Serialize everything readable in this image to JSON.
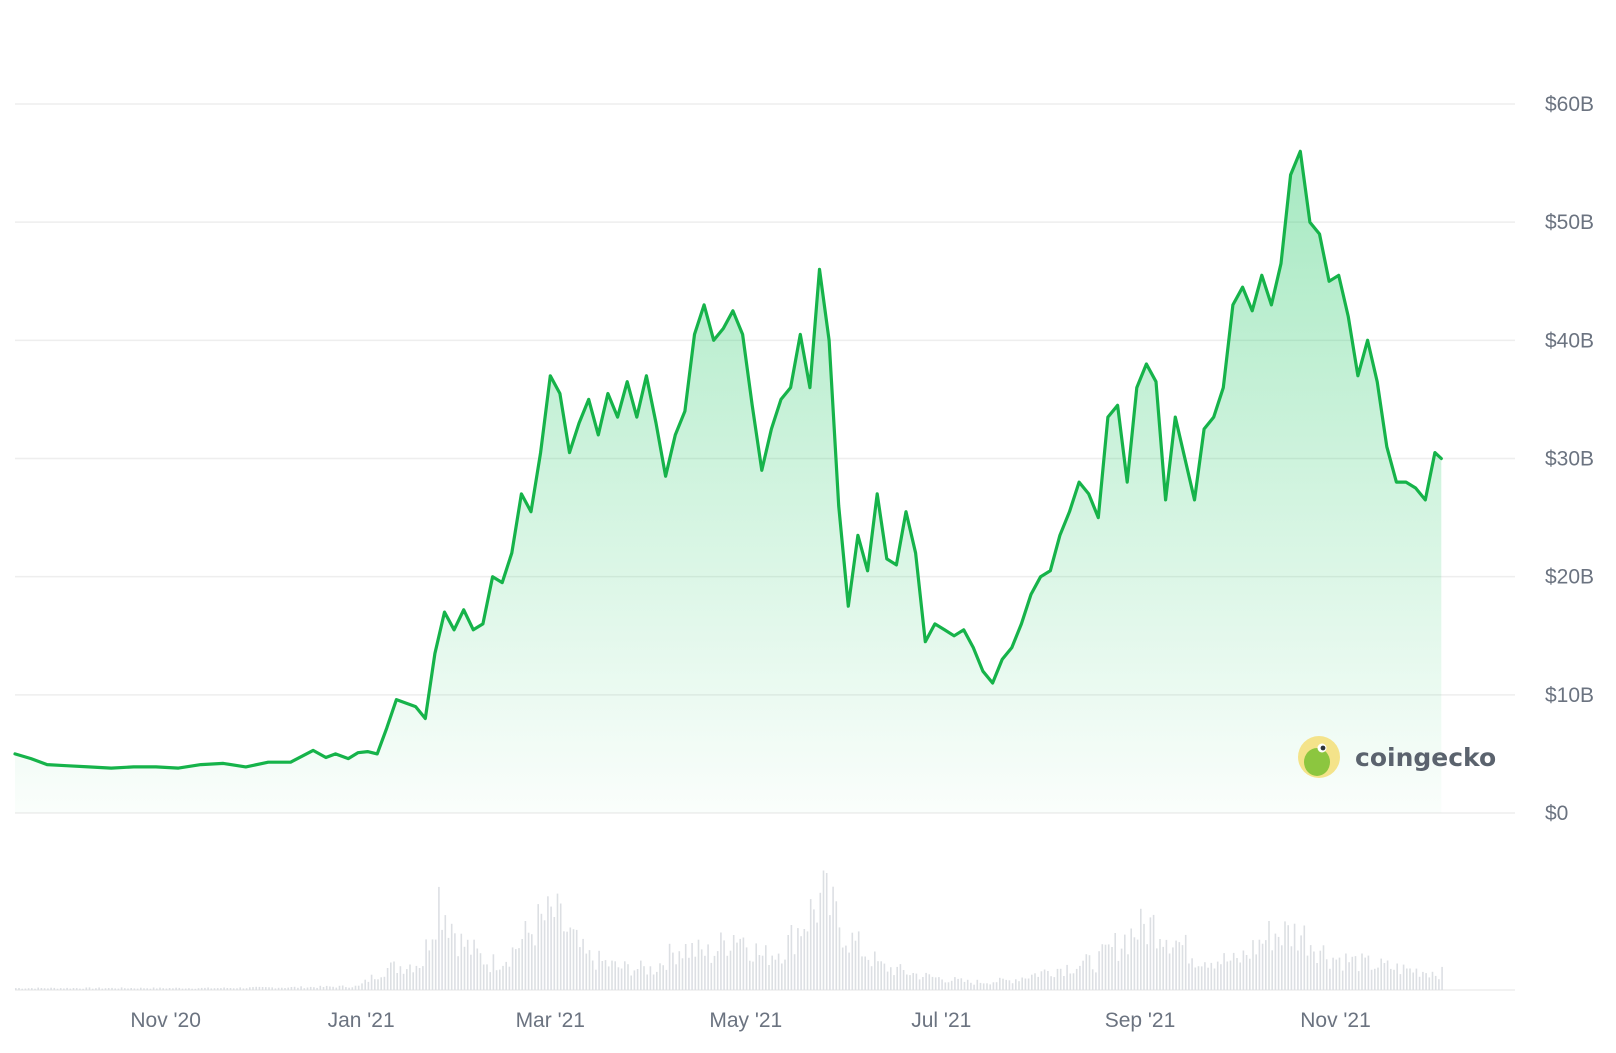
{
  "chart_data": {
    "type": "area",
    "title": "",
    "xlabel": "",
    "ylabel": "",
    "x_range": [
      "2020-09-15",
      "2021-12-27"
    ],
    "ylim": [
      0,
      60
    ],
    "y_unit": "B USD",
    "y_ticks": [
      {
        "value": 0,
        "label": "$0"
      },
      {
        "value": 10,
        "label": "$10B"
      },
      {
        "value": 20,
        "label": "$20B"
      },
      {
        "value": 30,
        "label": "$30B"
      },
      {
        "value": 40,
        "label": "$40B"
      },
      {
        "value": 50,
        "label": "$50B"
      },
      {
        "value": 60,
        "label": "$60B"
      }
    ],
    "x_ticks": [
      {
        "date": "2020-11-01",
        "label": "Nov '20"
      },
      {
        "date": "2021-01-01",
        "label": "Jan '21"
      },
      {
        "date": "2021-03-01",
        "label": "Mar '21"
      },
      {
        "date": "2021-05-01",
        "label": "May '21"
      },
      {
        "date": "2021-07-01",
        "label": "Jul '21"
      },
      {
        "date": "2021-09-01",
        "label": "Sep '21"
      },
      {
        "date": "2021-11-01",
        "label": "Nov '21"
      }
    ],
    "grid": true,
    "colors": {
      "line": "#16b34a",
      "fill": "#16c55d",
      "grid": "#eeeeee",
      "volume": "#dcdfe3",
      "axis_text": "#6b7380"
    },
    "series": [
      {
        "values": [
          [
            "2020-09-15",
            5.0
          ],
          [
            "2020-09-20",
            4.6
          ],
          [
            "2020-09-25",
            4.1
          ],
          [
            "2020-10-01",
            4.0
          ],
          [
            "2020-10-08",
            3.9
          ],
          [
            "2020-10-15",
            3.8
          ],
          [
            "2020-10-22",
            3.9
          ],
          [
            "2020-10-29",
            3.9
          ],
          [
            "2020-11-05",
            3.8
          ],
          [
            "2020-11-12",
            4.1
          ],
          [
            "2020-11-19",
            4.2
          ],
          [
            "2020-11-26",
            3.9
          ],
          [
            "2020-12-03",
            4.3
          ],
          [
            "2020-12-10",
            4.3
          ],
          [
            "2020-12-17",
            5.3
          ],
          [
            "2020-12-21",
            4.7
          ],
          [
            "2020-12-24",
            5.0
          ],
          [
            "2020-12-28",
            4.6
          ],
          [
            "2020-12-31",
            5.1
          ],
          [
            "2021-01-03",
            5.2
          ],
          [
            "2021-01-06",
            5.0
          ],
          [
            "2021-01-09",
            7.2
          ],
          [
            "2021-01-12",
            9.6
          ],
          [
            "2021-01-15",
            9.3
          ],
          [
            "2021-01-18",
            9.0
          ],
          [
            "2021-01-21",
            8.0
          ],
          [
            "2021-01-24",
            13.5
          ],
          [
            "2021-01-27",
            17.0
          ],
          [
            "2021-01-30",
            15.5
          ],
          [
            "2021-02-02",
            17.2
          ],
          [
            "2021-02-05",
            15.5
          ],
          [
            "2021-02-08",
            16.0
          ],
          [
            "2021-02-11",
            20.0
          ],
          [
            "2021-02-14",
            19.5
          ],
          [
            "2021-02-17",
            22.0
          ],
          [
            "2021-02-20",
            27.0
          ],
          [
            "2021-02-23",
            25.5
          ],
          [
            "2021-02-26",
            30.5
          ],
          [
            "2021-03-01",
            37.0
          ],
          [
            "2021-03-04",
            35.5
          ],
          [
            "2021-03-07",
            30.5
          ],
          [
            "2021-03-10",
            33.0
          ],
          [
            "2021-03-13",
            35.0
          ],
          [
            "2021-03-16",
            32.0
          ],
          [
            "2021-03-19",
            35.5
          ],
          [
            "2021-03-22",
            33.5
          ],
          [
            "2021-03-25",
            36.5
          ],
          [
            "2021-03-28",
            33.5
          ],
          [
            "2021-03-31",
            37.0
          ],
          [
            "2021-04-03",
            33.0
          ],
          [
            "2021-04-06",
            28.5
          ],
          [
            "2021-04-09",
            32.0
          ],
          [
            "2021-04-12",
            34.0
          ],
          [
            "2021-04-15",
            40.5
          ],
          [
            "2021-04-18",
            43.0
          ],
          [
            "2021-04-21",
            40.0
          ],
          [
            "2021-04-24",
            41.0
          ],
          [
            "2021-04-27",
            42.5
          ],
          [
            "2021-04-30",
            40.5
          ],
          [
            "2021-05-03",
            34.5
          ],
          [
            "2021-05-06",
            29.0
          ],
          [
            "2021-05-09",
            32.5
          ],
          [
            "2021-05-12",
            35.0
          ],
          [
            "2021-05-15",
            36.0
          ],
          [
            "2021-05-18",
            40.5
          ],
          [
            "2021-05-21",
            36.0
          ],
          [
            "2021-05-24",
            46.0
          ],
          [
            "2021-05-27",
            40.0
          ],
          [
            "2021-05-30",
            26.0
          ],
          [
            "2021-06-02",
            17.5
          ],
          [
            "2021-06-05",
            23.5
          ],
          [
            "2021-06-08",
            20.5
          ],
          [
            "2021-06-11",
            27.0
          ],
          [
            "2021-06-14",
            21.5
          ],
          [
            "2021-06-17",
            21.0
          ],
          [
            "2021-06-20",
            25.5
          ],
          [
            "2021-06-23",
            22.0
          ],
          [
            "2021-06-26",
            14.5
          ],
          [
            "2021-06-29",
            16.0
          ],
          [
            "2021-07-02",
            15.5
          ],
          [
            "2021-07-05",
            15.0
          ],
          [
            "2021-07-08",
            15.5
          ],
          [
            "2021-07-11",
            14.0
          ],
          [
            "2021-07-14",
            12.0
          ],
          [
            "2021-07-17",
            11.0
          ],
          [
            "2021-07-20",
            13.0
          ],
          [
            "2021-07-23",
            14.0
          ],
          [
            "2021-07-26",
            16.0
          ],
          [
            "2021-07-29",
            18.5
          ],
          [
            "2021-08-01",
            20.0
          ],
          [
            "2021-08-04",
            20.5
          ],
          [
            "2021-08-07",
            23.5
          ],
          [
            "2021-08-10",
            25.5
          ],
          [
            "2021-08-13",
            28.0
          ],
          [
            "2021-08-16",
            27.0
          ],
          [
            "2021-08-19",
            25.0
          ],
          [
            "2021-08-22",
            33.5
          ],
          [
            "2021-08-25",
            34.5
          ],
          [
            "2021-08-28",
            28.0
          ],
          [
            "2021-08-31",
            36.0
          ],
          [
            "2021-09-03",
            38.0
          ],
          [
            "2021-09-06",
            36.5
          ],
          [
            "2021-09-09",
            26.5
          ],
          [
            "2021-09-12",
            33.5
          ],
          [
            "2021-09-15",
            30.0
          ],
          [
            "2021-09-18",
            26.5
          ],
          [
            "2021-09-21",
            32.5
          ],
          [
            "2021-09-24",
            33.5
          ],
          [
            "2021-09-27",
            36.0
          ],
          [
            "2021-09-30",
            43.0
          ],
          [
            "2021-10-03",
            44.5
          ],
          [
            "2021-10-06",
            42.5
          ],
          [
            "2021-10-09",
            45.5
          ],
          [
            "2021-10-12",
            43.0
          ],
          [
            "2021-10-15",
            46.5
          ],
          [
            "2021-10-18",
            54.0
          ],
          [
            "2021-10-21",
            56.0
          ],
          [
            "2021-10-24",
            50.0
          ],
          [
            "2021-10-27",
            49.0
          ],
          [
            "2021-10-30",
            45.0
          ],
          [
            "2021-11-02",
            45.5
          ],
          [
            "2021-11-05",
            42.0
          ],
          [
            "2021-11-08",
            37.0
          ],
          [
            "2021-11-11",
            40.0
          ],
          [
            "2021-11-14",
            36.5
          ],
          [
            "2021-11-17",
            31.0
          ],
          [
            "2021-11-20",
            28.0
          ],
          [
            "2021-11-23",
            28.0
          ],
          [
            "2021-11-26",
            27.5
          ],
          [
            "2021-11-29",
            26.5
          ],
          [
            "2021-12-02",
            30.5
          ],
          [
            "2021-12-04",
            30.0
          ]
        ]
      }
    ],
    "volume": {
      "values": [
        [
          "2020-09-15",
          0.02
        ],
        [
          "2020-10-15",
          0.02
        ],
        [
          "2020-11-15",
          0.02
        ],
        [
          "2020-12-15",
          0.03
        ],
        [
          "2020-12-31",
          0.04
        ],
        [
          "2021-01-08",
          0.22
        ],
        [
          "2021-01-20",
          0.3
        ],
        [
          "2021-01-25",
          1.0
        ],
        [
          "2021-02-01",
          0.5
        ],
        [
          "2021-02-10",
          0.28
        ],
        [
          "2021-02-15",
          0.35
        ],
        [
          "2021-02-25",
          0.7
        ],
        [
          "2021-03-02",
          0.8
        ],
        [
          "2021-03-12",
          0.35
        ],
        [
          "2021-03-22",
          0.24
        ],
        [
          "2021-04-02",
          0.22
        ],
        [
          "2021-04-10",
          0.45
        ],
        [
          "2021-04-20",
          0.38
        ],
        [
          "2021-04-28",
          0.62
        ],
        [
          "2021-05-06",
          0.35
        ],
        [
          "2021-05-13",
          0.45
        ],
        [
          "2021-05-20",
          0.78
        ],
        [
          "2021-05-25",
          0.98
        ],
        [
          "2021-06-02",
          0.55
        ],
        [
          "2021-06-12",
          0.25
        ],
        [
          "2021-06-25",
          0.15
        ],
        [
          "2021-07-10",
          0.08
        ],
        [
          "2021-07-22",
          0.1
        ],
        [
          "2021-08-05",
          0.22
        ],
        [
          "2021-08-18",
          0.3
        ],
        [
          "2021-08-30",
          0.62
        ],
        [
          "2021-09-06",
          0.7
        ],
        [
          "2021-09-18",
          0.35
        ],
        [
          "2021-10-01",
          0.3
        ],
        [
          "2021-10-12",
          0.6
        ],
        [
          "2021-10-21",
          0.6
        ],
        [
          "2021-10-30",
          0.35
        ],
        [
          "2021-11-10",
          0.28
        ],
        [
          "2021-11-22",
          0.22
        ],
        [
          "2021-12-04",
          0.18
        ]
      ]
    }
  },
  "watermark": {
    "text": "coingecko"
  }
}
